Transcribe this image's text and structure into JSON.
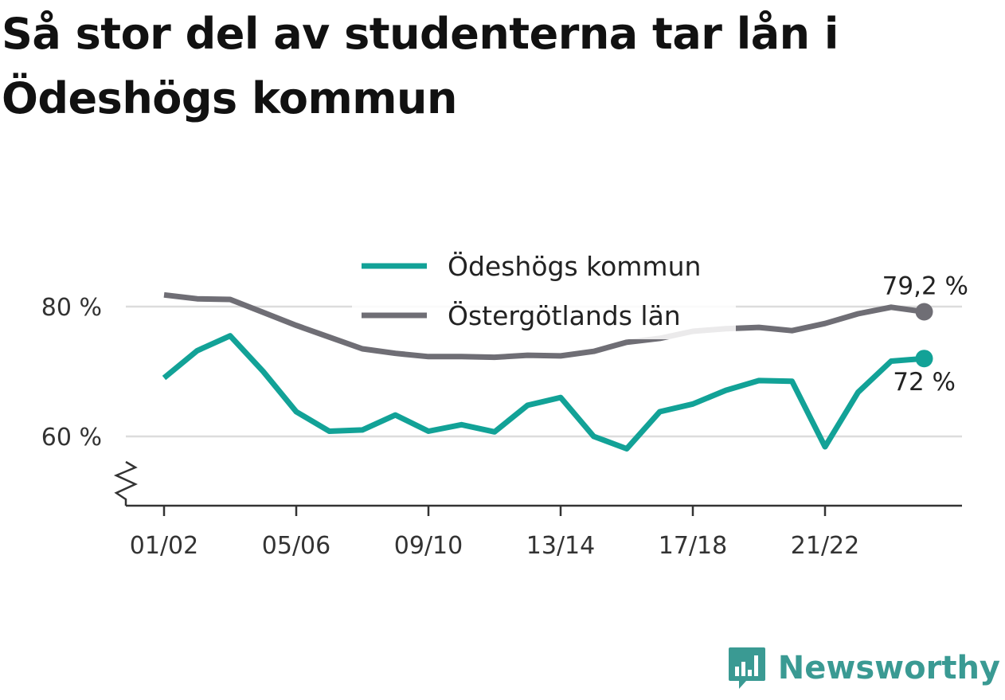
{
  "title": "Så stor del av studenterna tar lån i Ödeshögs kommun",
  "brand": {
    "name": "Newsworthy",
    "icon": "bar-chart-speech-icon",
    "color": "#3a9a93"
  },
  "colors": {
    "kommun": "#12a297",
    "lan": "#6f6e75",
    "grid": "#dcdcdc",
    "axis": "#333333"
  },
  "chart_data": {
    "type": "line",
    "title": "Så stor del av studenterna tar lån i Ödeshögs kommun",
    "xlabel": "",
    "ylabel": "",
    "ylim": [
      49,
      90
    ],
    "yticks": [
      60,
      80
    ],
    "ytick_labels": [
      "60 %",
      "80 %"
    ],
    "axis_break": true,
    "grid": true,
    "legend_position": "top-center",
    "x": [
      "01/02",
      "02/03",
      "03/04",
      "04/05",
      "05/06",
      "06/07",
      "07/08",
      "08/09",
      "09/10",
      "10/11",
      "11/12",
      "12/13",
      "13/14",
      "14/15",
      "15/16",
      "16/17",
      "17/18",
      "18/19",
      "19/20",
      "20/21",
      "21/22",
      "22/23",
      "23/24",
      "24/25"
    ],
    "xtick_labels": [
      "01/02",
      "05/06",
      "09/10",
      "13/14",
      "17/18",
      "21/22"
    ],
    "series": [
      {
        "name": "Ödeshögs kommun",
        "color": "#12a297",
        "values": [
          69.0,
          73.2,
          75.5,
          70.0,
          63.8,
          60.8,
          61.0,
          63.3,
          60.8,
          61.8,
          60.7,
          64.8,
          66.0,
          60.0,
          58.1,
          63.8,
          65.0,
          67.1,
          68.6,
          68.5,
          58.4,
          66.8,
          71.6,
          72.0
        ],
        "end_label": "72 %"
      },
      {
        "name": "Östergötlands län",
        "color": "#6f6e75",
        "values": [
          81.8,
          81.2,
          81.1,
          79.1,
          77.1,
          75.3,
          73.5,
          72.8,
          72.3,
          72.3,
          72.2,
          72.5,
          72.4,
          73.1,
          74.5,
          75.1,
          76.2,
          76.6,
          76.8,
          76.3,
          77.4,
          78.9,
          79.9,
          79.2
        ],
        "end_label": "79,2 %"
      }
    ]
  }
}
